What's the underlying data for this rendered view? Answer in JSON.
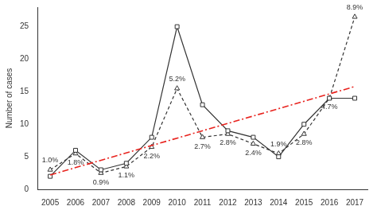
{
  "chart_data": {
    "type": "line",
    "y_label": "Number of cases",
    "categories": [
      "2005",
      "2006",
      "2007",
      "2008",
      "2009",
      "2010",
      "2011",
      "2012",
      "2013",
      "2014",
      "2015",
      "2016",
      "2017"
    ],
    "series": [
      {
        "color": "#333333",
        "marker": "square",
        "line_style": "solid",
        "values": [
          2,
          6,
          3,
          4,
          8,
          25,
          13,
          9,
          8,
          5,
          10,
          14,
          14
        ]
      },
      {
        "color": "#333333",
        "marker": "triangle",
        "line_style": "dashed",
        "values": [
          3,
          5.5,
          2.5,
          3.5,
          6.5,
          15.5,
          8,
          8.5,
          7,
          5.5,
          8.5,
          14,
          26.5
        ]
      },
      {
        "color": "#e8231e",
        "marker": "none",
        "line_style": "dashdot",
        "values": [
          2.2,
          null,
          null,
          null,
          null,
          null,
          null,
          null,
          null,
          null,
          null,
          null,
          15.8
        ]
      }
    ],
    "annotations": [
      {
        "category": "2005",
        "text": "1.0%"
      },
      {
        "category": "2006",
        "text": "1.8%"
      },
      {
        "category": "2007",
        "text": "0.9%"
      },
      {
        "category": "2008",
        "text": "1.1%"
      },
      {
        "category": "2009",
        "text": "2.2%"
      },
      {
        "category": "2010",
        "text": "5.2%"
      },
      {
        "category": "2011",
        "text": "2.7%"
      },
      {
        "category": "2012",
        "text": "2.8%"
      },
      {
        "category": "2013",
        "text": "2.4%"
      },
      {
        "category": "2014",
        "text": "1.9%"
      },
      {
        "category": "2015",
        "text": "2.8%"
      },
      {
        "category": "2016",
        "text": "4.7%"
      },
      {
        "category": "2017",
        "text": "8.9%"
      }
    ],
    "ylim": [
      0,
      28
    ],
    "yticks": [
      0,
      5,
      10,
      15,
      20,
      25
    ],
    "grid": false,
    "legend": null
  }
}
